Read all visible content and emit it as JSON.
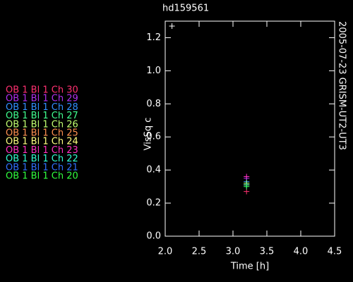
{
  "chart_data": {
    "type": "scatter",
    "title": "hd159561",
    "subtitle": "2005-07-23 GRISM-UT2-UT3",
    "x_label": "Time [h]",
    "y_label": "VisSq c",
    "xlim": [
      2.0,
      4.5
    ],
    "ylim": [
      0,
      1.3
    ],
    "xticks": [
      {
        "value": 2.0,
        "label": "2.0"
      },
      {
        "value": 2.5,
        "label": "2.5"
      },
      {
        "value": 3.0,
        "label": "3.0"
      },
      {
        "value": 3.5,
        "label": "3.5"
      },
      {
        "value": 4.0,
        "label": "4.0"
      },
      {
        "value": 4.5,
        "label": "4.5"
      }
    ],
    "yticks": [
      {
        "value": 0,
        "label": "0.0"
      },
      {
        "value": 0.2,
        "label": "0.2"
      },
      {
        "value": 0.4,
        "label": "0.4"
      },
      {
        "value": 0.6,
        "label": "0.6"
      },
      {
        "value": 0.8,
        "label": "0.8"
      },
      {
        "value": 1.0,
        "label": "1.0"
      },
      {
        "value": 1.2,
        "label": "1.2"
      }
    ],
    "points": [
      {
        "x": 2.1,
        "y": 1.27,
        "color": "#ffffff"
      }
    ],
    "series": [
      {
        "name": "OB 1 Bl 1 Ch 30",
        "color": "#ff3070",
        "x": [
          3.2
        ],
        "values": [
          0.27
        ]
      },
      {
        "name": "OB 1 Bl 1 Ch 29",
        "color": "#b030f0",
        "x": [
          3.2
        ],
        "values": [
          0.35
        ]
      },
      {
        "name": "OB 1 Bl 1 Ch 28",
        "color": "#3090ff",
        "x": [
          3.2
        ],
        "values": [
          0.33
        ]
      },
      {
        "name": "OB 1 Bl 1 Ch 27",
        "color": "#40ff90",
        "x": [
          3.2
        ],
        "values": [
          0.32
        ]
      },
      {
        "name": "OB 1 Bl 1 Ch 26",
        "color": "#c0ff70",
        "x": [
          3.2
        ],
        "values": [
          0.32
        ]
      },
      {
        "name": "OB 1 Bl 1 Ch 25",
        "color": "#ff9050",
        "x": [
          3.2
        ],
        "values": [
          0.31
        ]
      },
      {
        "name": "OB 1 Bl 1 Ch 24",
        "color": "#ffff80",
        "x": [
          3.2
        ],
        "values": [
          0.31
        ]
      },
      {
        "name": "OB 1 Bl 1 Ch 23",
        "color": "#ff30c0",
        "x": [
          3.2
        ],
        "values": [
          0.36
        ]
      },
      {
        "name": "OB 1 Bl 1 Ch 22",
        "color": "#30ffd0",
        "x": [
          3.2
        ],
        "values": [
          0.31
        ]
      },
      {
        "name": "OB 1 Bl 1 Ch 21",
        "color": "#3070ff",
        "x": [
          3.2
        ],
        "values": [
          0.3
        ]
      },
      {
        "name": "OB 1 Bl 1 Ch 20",
        "color": "#30ff40",
        "x": [
          3.2
        ],
        "values": [
          0.3
        ]
      }
    ]
  }
}
